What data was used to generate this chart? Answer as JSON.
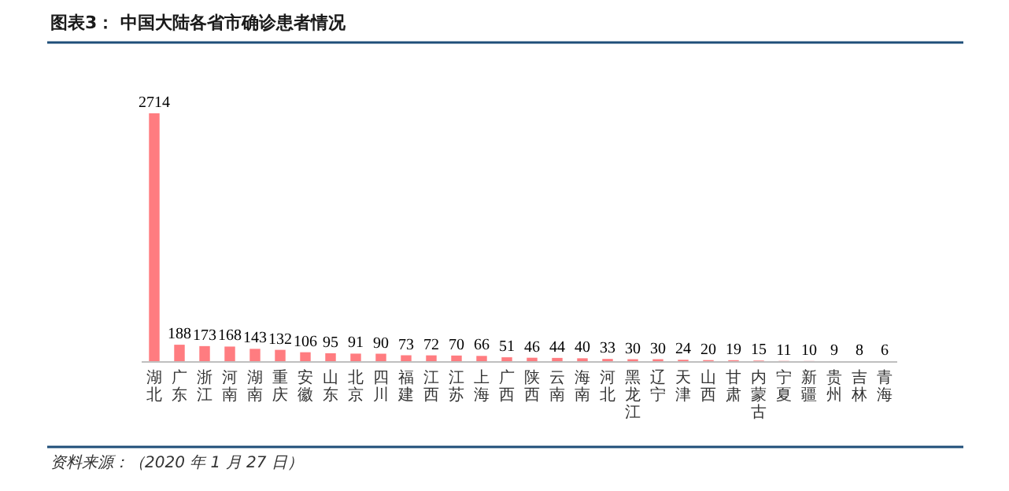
{
  "chart_data": {
    "type": "bar",
    "title": "图表3：  中国大陆各省市确诊患者情况",
    "categories": [
      "湖北",
      "广东",
      "浙江",
      "河南",
      "湖南",
      "重庆",
      "安徽",
      "山东",
      "北京",
      "四川",
      "福建",
      "江西",
      "江苏",
      "上海",
      "广西",
      "陕西",
      "云南",
      "海南",
      "河北",
      "黑龙江",
      "辽宁",
      "天津",
      "山西",
      "甘肃",
      "内蒙古",
      "宁夏",
      "新疆",
      "贵州",
      "吉林",
      "青海"
    ],
    "values": [
      2714,
      188,
      173,
      168,
      143,
      132,
      106,
      95,
      91,
      90,
      73,
      72,
      70,
      66,
      51,
      46,
      44,
      40,
      33,
      30,
      30,
      24,
      20,
      19,
      15,
      11,
      10,
      9,
      8,
      6
    ],
    "color": "#ff7c80",
    "data_labels": true,
    "annotations": [
      "资料来源：（2020 年 1 月 27 日）"
    ]
  }
}
